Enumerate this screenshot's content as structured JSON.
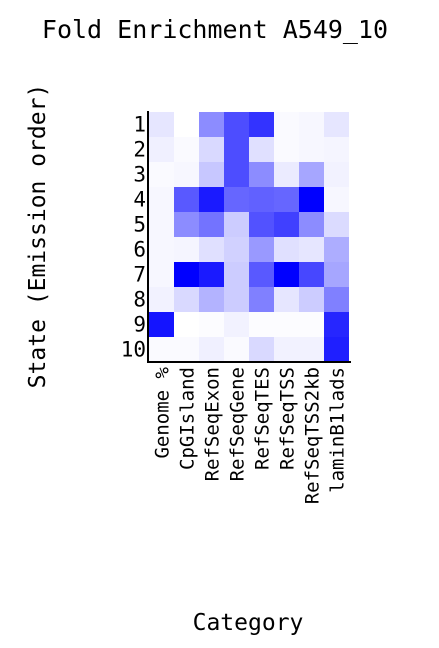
{
  "chart_data": {
    "type": "heatmap",
    "title": "Fold Enrichment A549_10",
    "xlabel": "Category",
    "ylabel": "State (Emission order)",
    "rows": [
      "1",
      "2",
      "3",
      "4",
      "5",
      "6",
      "7",
      "8",
      "9",
      "10"
    ],
    "columns": [
      "Genome %",
      "CpGIsland",
      "RefSeqExon",
      "RefSeqGene",
      "RefSeqTES",
      "RefSeqTSS",
      "RefSeqTSS2kb",
      "laminB1lads"
    ],
    "color_low": "#ffffff",
    "color_high": "#0000ff",
    "scale": "intensity 0-1 per column",
    "values": [
      [
        0.1,
        0.0,
        0.45,
        0.7,
        0.8,
        0.02,
        0.03,
        0.1
      ],
      [
        0.06,
        0.02,
        0.15,
        0.7,
        0.12,
        0.02,
        0.03,
        0.04
      ],
      [
        0.02,
        0.03,
        0.22,
        0.7,
        0.45,
        0.08,
        0.35,
        0.05
      ],
      [
        0.03,
        0.65,
        0.9,
        0.6,
        0.62,
        0.6,
        1.0,
        0.03
      ],
      [
        0.03,
        0.45,
        0.55,
        0.2,
        0.68,
        0.75,
        0.45,
        0.14
      ],
      [
        0.03,
        0.04,
        0.12,
        0.18,
        0.4,
        0.12,
        0.1,
        0.32
      ],
      [
        0.03,
        1.0,
        0.9,
        0.2,
        0.65,
        1.0,
        0.72,
        0.35
      ],
      [
        0.05,
        0.15,
        0.3,
        0.2,
        0.5,
        0.1,
        0.2,
        0.5
      ],
      [
        0.92,
        0.0,
        0.01,
        0.05,
        0.01,
        0.01,
        0.01,
        0.85
      ],
      [
        0.02,
        0.02,
        0.06,
        0.02,
        0.15,
        0.05,
        0.05,
        0.88
      ]
    ]
  }
}
